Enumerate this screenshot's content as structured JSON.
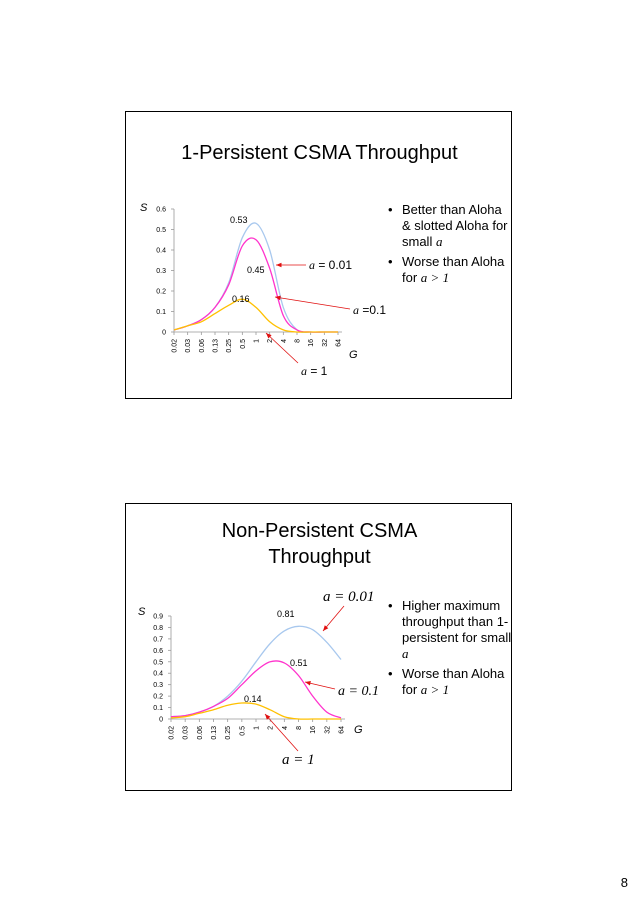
{
  "page_number": "8",
  "slides": [
    {
      "title": "1-Persistent CSMA Throughput",
      "bullets": [
        {
          "text": "Better than Aloha & slotted Aloha for small ",
          "math": "a"
        },
        {
          "text": "Worse than Aloha for ",
          "math": "a > 1"
        }
      ]
    },
    {
      "title_line1": "Non-Persistent CSMA",
      "title_line2": "Throughput",
      "bullets": [
        {
          "text": "Higher maximum throughput than 1-persistent for small ",
          "math": "a"
        },
        {
          "text": "Worse than Aloha for ",
          "math": "a > 1"
        }
      ]
    }
  ],
  "chart_data": [
    {
      "type": "line",
      "ylabel": "S",
      "xlabel": "G",
      "ylim": [
        0,
        0.6
      ],
      "yticks": [
        "0",
        "0.1",
        "0.2",
        "0.3",
        "0.4",
        "0.5",
        "0.6"
      ],
      "categories": [
        "0.02",
        "0.03",
        "0.06",
        "0.13",
        "0.25",
        "0.5",
        "1",
        "2",
        "4",
        "8",
        "16",
        "32",
        "64"
      ],
      "series": [
        {
          "name": "a = 0.01",
          "color": "#a8c8ee",
          "values": [
            0.01,
            0.03,
            0.06,
            0.12,
            0.24,
            0.46,
            0.53,
            0.4,
            0.12,
            0.01,
            0.0,
            0.0,
            0.0
          ]
        },
        {
          "name": "a = 0.1",
          "color": "#ff33cc",
          "values": [
            0.01,
            0.03,
            0.06,
            0.12,
            0.23,
            0.42,
            0.45,
            0.31,
            0.08,
            0.01,
            0.0,
            0.0,
            0.0
          ]
        },
        {
          "name": "a = 1",
          "color": "#ffc000",
          "values": [
            0.01,
            0.03,
            0.05,
            0.09,
            0.13,
            0.16,
            0.12,
            0.05,
            0.01,
            0.0,
            0.0,
            0.0,
            0.0
          ]
        }
      ],
      "data_labels": [
        "0.53",
        "0.45",
        "0.16"
      ],
      "annotations": [
        {
          "math": "a",
          "rest": " = 0.01"
        },
        {
          "math": "a",
          "rest": " =0.1"
        },
        {
          "math": "a",
          "rest": " = 1"
        }
      ]
    },
    {
      "type": "line",
      "ylabel": "S",
      "xlabel": "G",
      "ylim": [
        0,
        0.9
      ],
      "yticks": [
        "0",
        "0.1",
        "0.2",
        "0.3",
        "0.4",
        "0.5",
        "0.6",
        "0.7",
        "0.8",
        "0.9"
      ],
      "categories": [
        "0.02",
        "0.03",
        "0.06",
        "0.13",
        "0.25",
        "0.5",
        "1",
        "2",
        "4",
        "8",
        "16",
        "32",
        "64"
      ],
      "series": [
        {
          "name": "a = 0.01",
          "color": "#a8c8ee",
          "values": [
            0.02,
            0.03,
            0.06,
            0.11,
            0.2,
            0.33,
            0.5,
            0.66,
            0.77,
            0.81,
            0.78,
            0.67,
            0.52
          ]
        },
        {
          "name": "a = 0.1",
          "color": "#ff33cc",
          "values": [
            0.02,
            0.03,
            0.06,
            0.11,
            0.18,
            0.3,
            0.42,
            0.5,
            0.49,
            0.38,
            0.2,
            0.06,
            0.01
          ]
        },
        {
          "name": "a = 1",
          "color": "#ffc000",
          "values": [
            0.01,
            0.02,
            0.05,
            0.08,
            0.12,
            0.14,
            0.13,
            0.08,
            0.02,
            0.0,
            0.0,
            0.0,
            0.0
          ]
        }
      ],
      "data_labels": [
        "0.81",
        "0.51",
        "0.14"
      ],
      "annotations": [
        {
          "text": "a = 0.01"
        },
        {
          "text": "a = 0.1"
        },
        {
          "text": "a = 1"
        }
      ]
    }
  ]
}
